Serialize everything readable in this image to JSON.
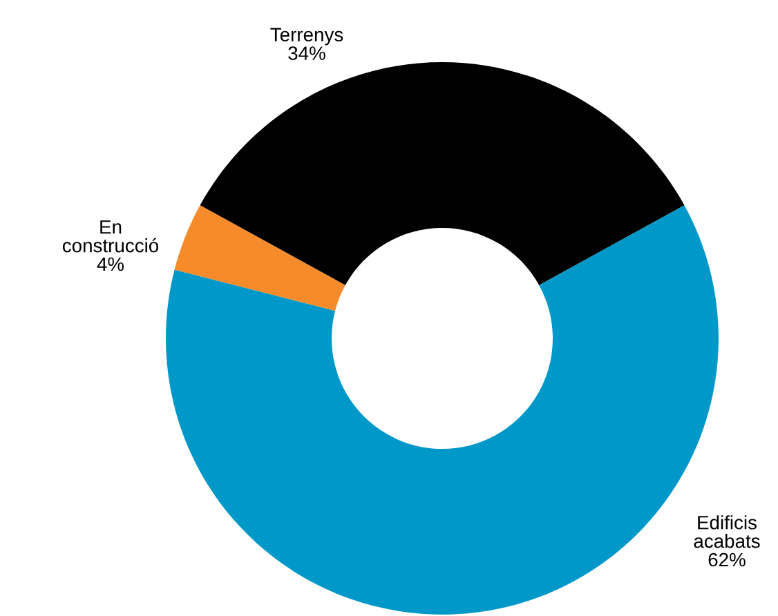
{
  "chart_data": {
    "type": "donut",
    "categories": [
      "Terrenys",
      "En construcció",
      "Edificis acabats"
    ],
    "values": [
      34,
      4,
      62
    ],
    "colors": [
      "#000000",
      "#f68b2b",
      "#0098c8"
    ],
    "value_labels": [
      "34%",
      "4%",
      "62%"
    ]
  }
}
